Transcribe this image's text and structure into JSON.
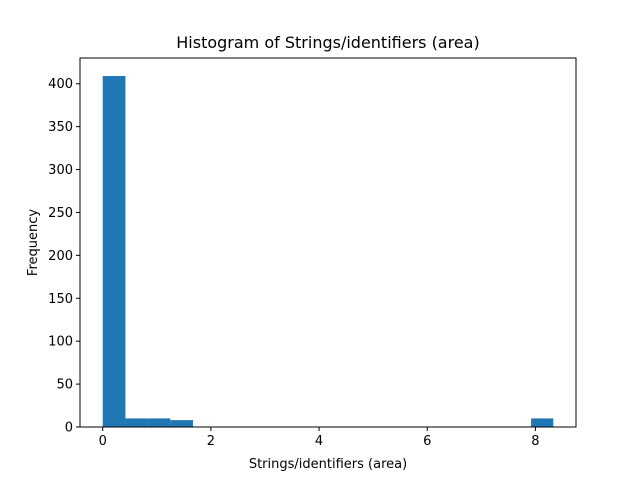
{
  "chart_data": {
    "type": "bar",
    "title": "Histogram of Strings/identifiers (area)",
    "xlabel": "Strings/identifiers (area)",
    "ylabel": "Frequency",
    "bins": [
      {
        "x0": 0.0,
        "x1": 0.42,
        "count": 409
      },
      {
        "x0": 0.42,
        "x1": 0.83,
        "count": 10
      },
      {
        "x0": 0.83,
        "x1": 1.25,
        "count": 10
      },
      {
        "x0": 1.25,
        "x1": 1.67,
        "count": 8
      },
      {
        "x0": 7.92,
        "x1": 8.33,
        "count": 10
      }
    ],
    "xlim": [
      -0.42,
      8.75
    ],
    "ylim": [
      0,
      430
    ],
    "xticks": [
      0,
      2,
      4,
      6,
      8
    ],
    "yticks": [
      0,
      50,
      100,
      150,
      200,
      250,
      300,
      350,
      400
    ],
    "grid": false,
    "bar_color": "#1f77b4"
  }
}
